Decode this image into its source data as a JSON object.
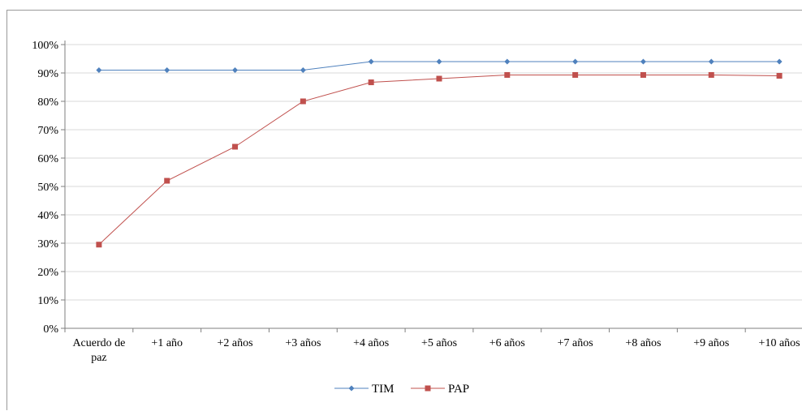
{
  "chart_data": {
    "type": "line",
    "title": "",
    "xlabel": "",
    "ylabel": "",
    "categories": [
      [
        "Acuerdo de",
        "paz"
      ],
      [
        "+1 año"
      ],
      [
        "+2 años"
      ],
      [
        "+3 años"
      ],
      [
        "+4 años"
      ],
      [
        "+5 años"
      ],
      [
        "+6 años"
      ],
      [
        "+7 años"
      ],
      [
        "+8 años"
      ],
      [
        "+9 años"
      ],
      [
        "+10 años"
      ]
    ],
    "yticks": [
      "0%",
      "10%",
      "20%",
      "30%",
      "40%",
      "50%",
      "60%",
      "70%",
      "80%",
      "90%",
      "100%"
    ],
    "ylim": [
      0,
      100
    ],
    "y_unit": "%",
    "grid": true,
    "legend_position": "bottom",
    "series": [
      {
        "name": "TIM",
        "color": "#4f81bd",
        "marker": "diamond",
        "values": [
          91,
          91,
          91,
          91,
          94,
          94,
          94,
          94,
          94,
          94,
          94
        ]
      },
      {
        "name": "PAP",
        "color": "#c0504d",
        "marker": "square",
        "values": [
          29.5,
          52,
          64,
          80,
          86.7,
          88,
          89.3,
          89.3,
          89.3,
          89.3,
          89
        ]
      }
    ]
  }
}
